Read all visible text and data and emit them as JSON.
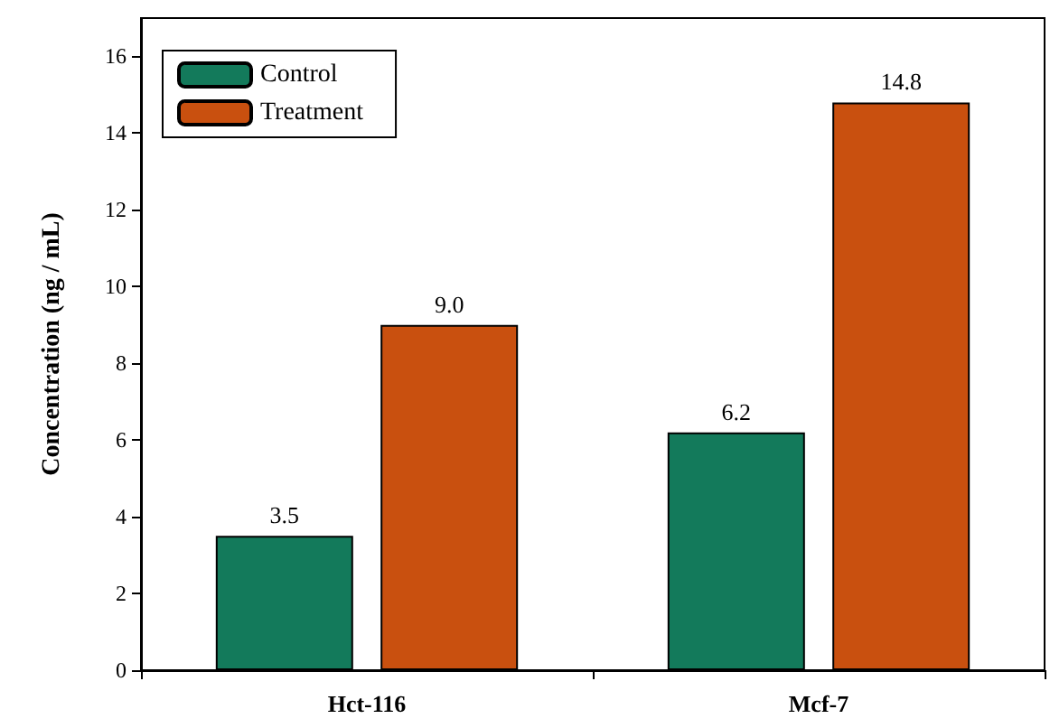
{
  "chart_data": {
    "type": "bar",
    "ylabel": "Concentration (ng / mL)",
    "categories": [
      "Hct-116",
      "Mcf-7"
    ],
    "series": [
      {
        "name": "Control",
        "color": "#137a5b",
        "values": [
          3.5,
          6.2
        ]
      },
      {
        "name": "Treatment",
        "color": "#c9500f",
        "values": [
          9.0,
          14.8
        ]
      }
    ],
    "value_labels": [
      [
        "3.5",
        "6.2"
      ],
      [
        "9.0",
        "14.8"
      ]
    ],
    "ylim": [
      0,
      17
    ],
    "yticks": [
      0,
      2,
      4,
      6,
      8,
      10,
      12,
      14,
      16
    ],
    "grid": false,
    "legend": "top left"
  }
}
